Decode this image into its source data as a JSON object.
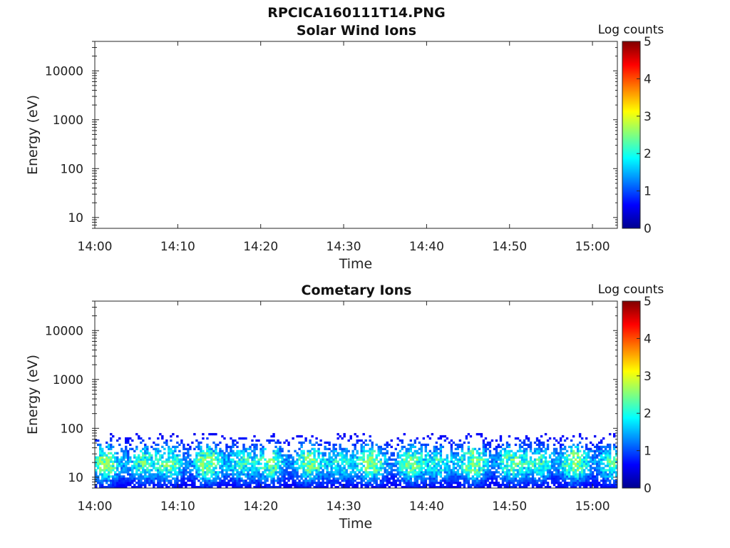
{
  "figure": {
    "title": "RPCICA160111T14.PNG"
  },
  "chart_data": [
    {
      "type": "heatmap",
      "title": "Solar Wind Ions",
      "xlabel": "Time",
      "ylabel": "Energy (eV)",
      "xticks": [
        "14:00",
        "14:10",
        "14:20",
        "14:30",
        "14:40",
        "14:50",
        "15:00"
      ],
      "xlim": [
        "14:00",
        "15:03"
      ],
      "yscale": "log",
      "yticks": [
        10,
        100,
        1000,
        10000
      ],
      "ytick_labels": [
        "10",
        "100",
        "1000",
        "10000"
      ],
      "ylim": [
        6,
        40000
      ],
      "colorbar": {
        "label": "Log counts",
        "ticks": [
          "0",
          "1",
          "2",
          "3",
          "4",
          "5"
        ],
        "range": [
          0,
          5
        ],
        "colormap": "jet"
      },
      "data_summary": "no counts"
    },
    {
      "type": "heatmap",
      "title": "Cometary Ions",
      "xlabel": "Time",
      "ylabel": "Energy (eV)",
      "xticks": [
        "14:00",
        "14:10",
        "14:20",
        "14:30",
        "14:40",
        "14:50",
        "15:00"
      ],
      "xlim": [
        "14:00",
        "15:03"
      ],
      "yscale": "log",
      "yticks": [
        10,
        100,
        1000,
        10000
      ],
      "ytick_labels": [
        "10",
        "100",
        "1000",
        "10000"
      ],
      "ylim": [
        6,
        40000
      ],
      "colorbar": {
        "label": "Log counts",
        "ticks": [
          "0",
          "1",
          "2",
          "3",
          "4",
          "5"
        ],
        "range": [
          0,
          5
        ],
        "colormap": "jet"
      },
      "data_summary": "counts between ~6 eV and ~80 eV throughout 14:00–15:03, peak log counts ~2.5 near 15–25 eV",
      "energy_band_eV": [
        6,
        80
      ],
      "peak_energy_eV": 20,
      "peak_log_counts": 2.5
    }
  ]
}
